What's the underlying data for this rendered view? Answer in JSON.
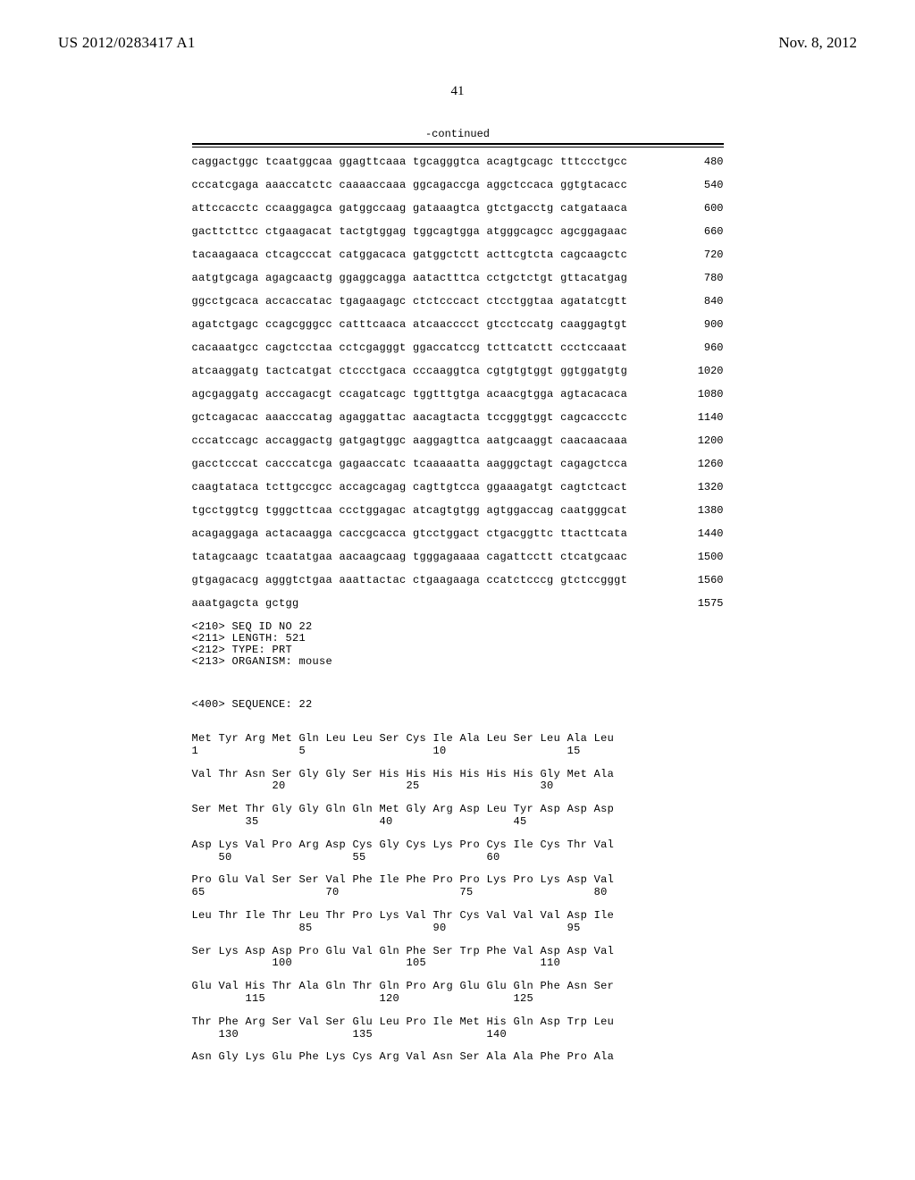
{
  "header": {
    "doc_id": "US 2012/0283417 A1",
    "date": "Nov. 8, 2012"
  },
  "page_number": "41",
  "continued_label": "-continued",
  "dna_sequence": {
    "lines": [
      {
        "text": "caggactggc tcaatggcaa ggagttcaaa tgcagggtca acagtgcagc tttccctgcc",
        "pos": "480"
      },
      {
        "text": "cccatcgaga aaaccatctc caaaaccaaa ggcagaccga aggctccaca ggtgtacacc",
        "pos": "540"
      },
      {
        "text": "attccacctc ccaaggagca gatggccaag gataaagtca gtctgacctg catgataaca",
        "pos": "600"
      },
      {
        "text": "gacttcttcc ctgaagacat tactgtggag tggcagtgga atgggcagcc agcggagaac",
        "pos": "660"
      },
      {
        "text": "tacaagaaca ctcagcccat catggacaca gatggctctt acttcgtcta cagcaagctc",
        "pos": "720"
      },
      {
        "text": "aatgtgcaga agagcaactg ggaggcagga aatactttca cctgctctgt gttacatgag",
        "pos": "780"
      },
      {
        "text": "ggcctgcaca accaccatac tgagaagagc ctctcccact ctcctggtaa agatatcgtt",
        "pos": "840"
      },
      {
        "text": "agatctgagc ccagcgggcc catttcaaca atcaacccct gtcctccatg caaggagtgt",
        "pos": "900"
      },
      {
        "text": "cacaaatgcc cagctcctaa cctcgagggt ggaccatccg tcttcatctt ccctccaaat",
        "pos": "960"
      },
      {
        "text": "atcaaggatg tactcatgat ctccctgaca cccaaggtca cgtgtgtggt ggtggatgtg",
        "pos": "1020"
      },
      {
        "text": "agcgaggatg acccagacgt ccagatcagc tggtttgtga acaacgtgga agtacacaca",
        "pos": "1080"
      },
      {
        "text": "gctcagacac aaacccatag agaggattac aacagtacta tccgggtggt cagcaccctc",
        "pos": "1140"
      },
      {
        "text": "cccatccagc accaggactg gatgagtggc aaggagttca aatgcaaggt caacaacaaa",
        "pos": "1200"
      },
      {
        "text": "gacctcccat cacccatcga gagaaccatc tcaaaaatta aagggctagt cagagctcca",
        "pos": "1260"
      },
      {
        "text": "caagtataca tcttgccgcc accagcagag cagttgtcca ggaaagatgt cagtctcact",
        "pos": "1320"
      },
      {
        "text": "tgcctggtcg tgggcttcaa ccctggagac atcagtgtgg agtggaccag caatgggcat",
        "pos": "1380"
      },
      {
        "text": "acagaggaga actacaagga caccgcacca gtcctggact ctgacggttc ttacttcata",
        "pos": "1440"
      },
      {
        "text": "tatagcaagc tcaatatgaa aacaagcaag tgggagaaaa cagattcctt ctcatgcaac",
        "pos": "1500"
      },
      {
        "text": "gtgagacacg agggtctgaa aaattactac ctgaagaaga ccatctcccg gtctccgggt",
        "pos": "1560"
      },
      {
        "text": "aaatgagcta gctgg",
        "pos": "1575"
      }
    ]
  },
  "seq_meta": {
    "lines": [
      "<210> SEQ ID NO 22",
      "<211> LENGTH: 521",
      "<212> TYPE: PRT",
      "<213> ORGANISM: mouse"
    ],
    "sequence_line": "<400> SEQUENCE: 22"
  },
  "protein_sequence": {
    "pairs": [
      {
        "aa": "Met Tyr Arg Met Gln Leu Leu Ser Cys Ile Ala Leu Ser Leu Ala Leu",
        "num": "1               5                   10                  15"
      },
      {
        "aa": "Val Thr Asn Ser Gly Gly Ser His His His His His His Gly Met Ala",
        "num": "            20                  25                  30"
      },
      {
        "aa": "Ser Met Thr Gly Gly Gln Gln Met Gly Arg Asp Leu Tyr Asp Asp Asp",
        "num": "        35                  40                  45"
      },
      {
        "aa": "Asp Lys Val Pro Arg Asp Cys Gly Cys Lys Pro Cys Ile Cys Thr Val",
        "num": "    50                  55                  60"
      },
      {
        "aa": "Pro Glu Val Ser Ser Val Phe Ile Phe Pro Pro Lys Pro Lys Asp Val",
        "num": "65                  70                  75                  80"
      },
      {
        "aa": "Leu Thr Ile Thr Leu Thr Pro Lys Val Thr Cys Val Val Val Asp Ile",
        "num": "                85                  90                  95"
      },
      {
        "aa": "Ser Lys Asp Asp Pro Glu Val Gln Phe Ser Trp Phe Val Asp Asp Val",
        "num": "            100                 105                 110"
      },
      {
        "aa": "Glu Val His Thr Ala Gln Thr Gln Pro Arg Glu Glu Gln Phe Asn Ser",
        "num": "        115                 120                 125"
      },
      {
        "aa": "Thr Phe Arg Ser Val Ser Glu Leu Pro Ile Met His Gln Asp Trp Leu",
        "num": "    130                 135                 140"
      },
      {
        "aa": "Asn Gly Lys Glu Phe Lys Cys Arg Val Asn Ser Ala Ala Phe Pro Ala",
        "num": ""
      }
    ]
  }
}
